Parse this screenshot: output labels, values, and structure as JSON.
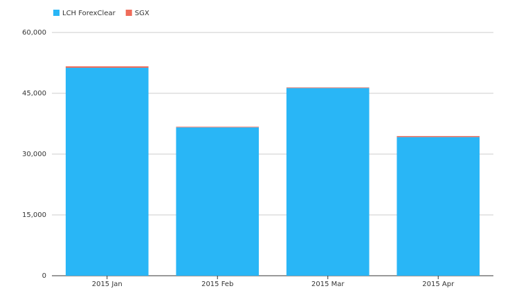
{
  "chart_data": {
    "type": "stacked-bar",
    "categories": [
      "2015 Jan",
      "2015 Feb",
      "2015 Mar",
      "2015 Apr"
    ],
    "series": [
      {
        "name": "LCH ForexClear",
        "color": "#29b6f6",
        "values": [
          51300,
          36600,
          46300,
          34200
        ]
      },
      {
        "name": "SGX",
        "color": "#ef6c5a",
        "values": [
          350,
          150,
          150,
          250
        ]
      }
    ],
    "ylim": [
      0,
      60000
    ],
    "yticks": [
      0,
      {
        "value": 15000,
        "label": "15,000"
      },
      {
        "value": 30000,
        "label": "30,000"
      },
      {
        "value": 45000,
        "label": "45,000"
      },
      {
        "value": 60000,
        "label": "60,000"
      }
    ],
    "grid": true,
    "legend": "top-left"
  }
}
